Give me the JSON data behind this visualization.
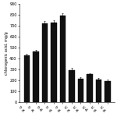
{
  "categories": [
    "CF\n0h",
    "CF\n2h",
    "CF\n4h",
    "CF\n6h",
    "CF\n8h",
    "KC\n0h",
    "KC\n2h",
    "KC\n4h",
    "KC\n6h",
    "KC\n8h"
  ],
  "values": [
    430,
    460,
    720,
    730,
    790,
    295,
    215,
    255,
    210,
    195
  ],
  "errors": [
    15,
    18,
    20,
    22,
    25,
    15,
    10,
    10,
    8,
    10
  ],
  "bar_color": "#111111",
  "ylabel": "chlorogenic acid, mg/g",
  "ylim": [
    0,
    900
  ],
  "yticks": [
    0,
    100,
    200,
    300,
    400,
    500,
    600,
    700,
    800,
    900
  ],
  "figwidth": 1.5,
  "figheight": 1.5,
  "dpi": 100,
  "bar_width": 0.65,
  "ylabel_fontsize": 3.5,
  "tick_fontsize": 3.5,
  "xlabel_fontsize": 3.0
}
